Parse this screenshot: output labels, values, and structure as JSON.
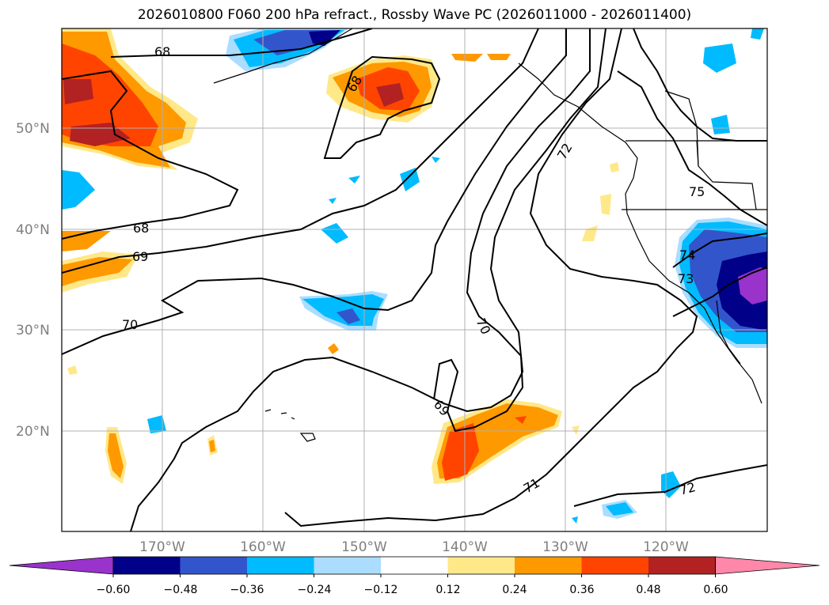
{
  "title": "2026010800 F060 200 hPa refract., Rossby Wave PC (2026011000 - 2026011400)",
  "map": {
    "lat_labels": [
      "50°N",
      "40°N",
      "30°N",
      "20°N"
    ],
    "lon_labels": [
      "170°W",
      "160°W",
      "150°W",
      "140°W",
      "130°W",
      "120°W"
    ],
    "contour_labels": [
      "68",
      "68",
      "68",
      "69",
      "69",
      "70",
      "70",
      "71",
      "72",
      "72",
      "73",
      "74",
      "75"
    ]
  },
  "colorbar": {
    "ticks": [
      "−0.60",
      "−0.48",
      "−0.36",
      "−0.24",
      "−0.12",
      "0.12",
      "0.24",
      "0.36",
      "0.48",
      "0.60"
    ],
    "colors": [
      "#9933cc",
      "#000088",
      "#3355cc",
      "#00bbff",
      "#aaddff",
      "#ffffff",
      "#ffe888",
      "#ff9900",
      "#ff4400",
      "#b22222",
      "#ff88aa"
    ]
  }
}
